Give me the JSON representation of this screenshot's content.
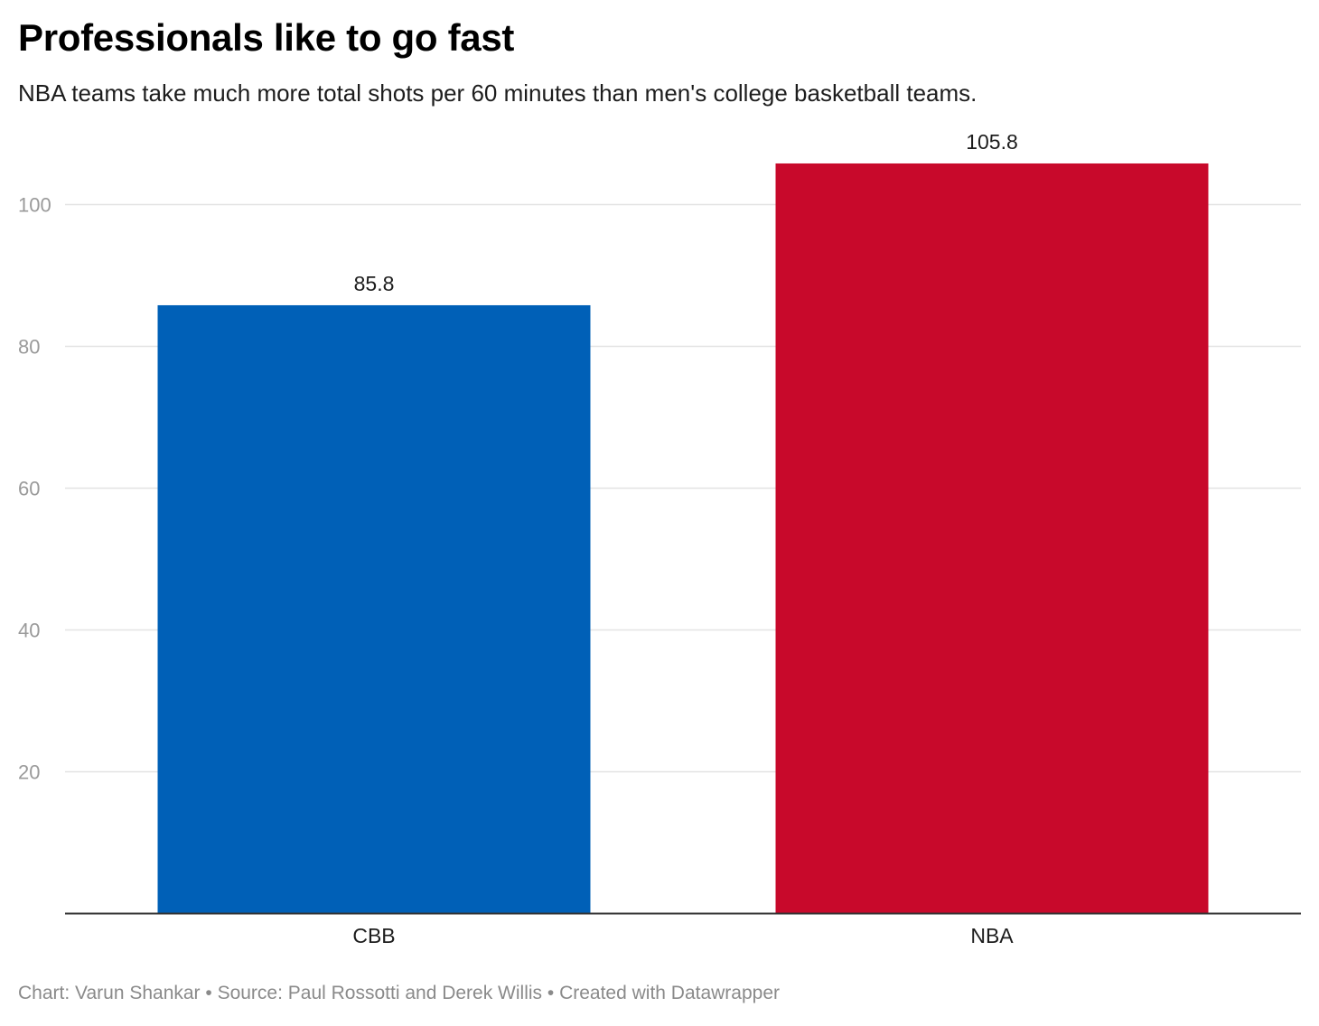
{
  "title": "Professionals like to go fast",
  "subtitle": "NBA teams take much more total shots per 60 minutes than men's college basketball teams.",
  "footer": "Chart: Varun Shankar • Source: Paul Rossotti and Derek Willis • Created with Datawrapper",
  "chart_data": {
    "type": "bar",
    "categories": [
      "CBB",
      "NBA"
    ],
    "values": [
      85.8,
      105.8
    ],
    "value_labels": [
      "85.8",
      "105.8"
    ],
    "colors": [
      "#0060b7",
      "#c8092b"
    ],
    "yticks": [
      20,
      40,
      60,
      80,
      100
    ],
    "ylim": [
      0,
      106
    ],
    "grid": true,
    "xlabel": "",
    "ylabel": ""
  }
}
